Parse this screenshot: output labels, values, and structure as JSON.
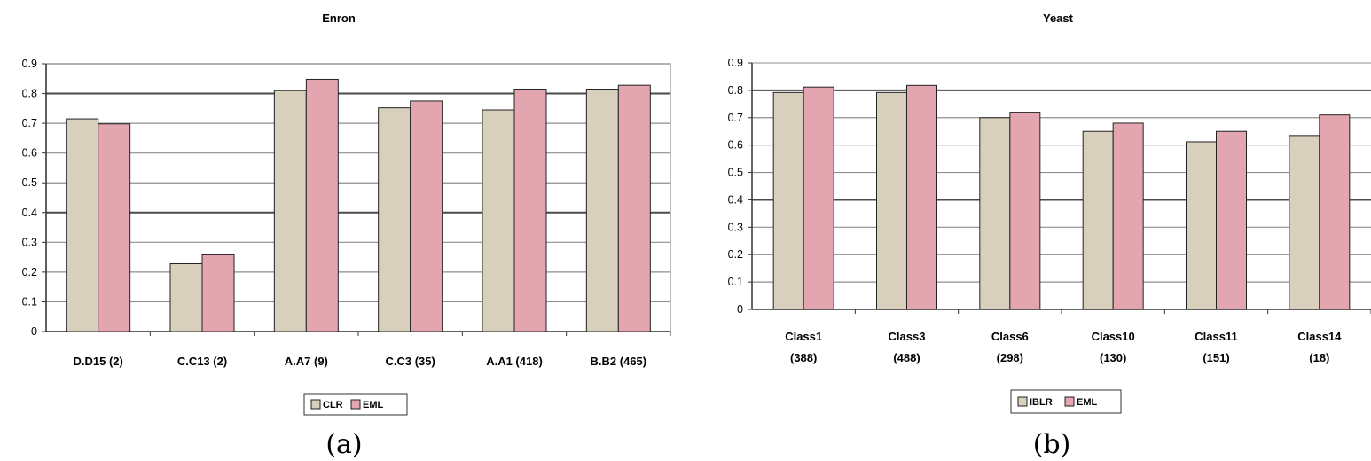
{
  "chart_data": [
    {
      "type": "bar",
      "title": "Enron",
      "caption": "(a)",
      "categories": [
        "D.D15 (2)",
        "C.C13 (2)",
        "A.A7 (9)",
        "C.C3 (35)",
        "A.A1 (418)",
        "B.B2 (465)"
      ],
      "series": [
        {
          "name": "CLR",
          "color": "#d8d0bc",
          "values": [
            0.715,
            0.228,
            0.81,
            0.752,
            0.745,
            0.815
          ]
        },
        {
          "name": "EML",
          "color": "#e3a6b0",
          "values": [
            0.698,
            0.258,
            0.848,
            0.775,
            0.815,
            0.828
          ]
        }
      ],
      "ylim": [
        0,
        0.9
      ],
      "yticks": [
        "0",
        "0.1",
        "0.2",
        "0.3",
        "0.4",
        "0.5",
        "0.6",
        "0.7",
        "0.8",
        "0.9"
      ],
      "grid": true,
      "legend": "bottom-center"
    },
    {
      "type": "bar",
      "title": "Yeast",
      "caption": "(b)",
      "categories": [
        [
          "Class1",
          "(388)"
        ],
        [
          "Class3",
          "(488)"
        ],
        [
          "Class6",
          "(298)"
        ],
        [
          "Class10",
          "(130)"
        ],
        [
          "Class11",
          "(151)"
        ],
        [
          "Class14",
          "(18)"
        ]
      ],
      "series": [
        {
          "name": "IBLR",
          "color": "#d8d0bc",
          "values": [
            0.792,
            0.792,
            0.7,
            0.65,
            0.612,
            0.635
          ]
        },
        {
          "name": "EML",
          "color": "#e3a6b0",
          "values": [
            0.812,
            0.818,
            0.72,
            0.68,
            0.65,
            0.71
          ]
        }
      ],
      "ylim": [
        0,
        0.9
      ],
      "yticks": [
        "0",
        "0.1",
        "0.2",
        "0.3",
        "0.4",
        "0.5",
        "0.6",
        "0.7",
        "0.8",
        "0.9"
      ],
      "grid": true,
      "legend": "bottom-center"
    }
  ]
}
